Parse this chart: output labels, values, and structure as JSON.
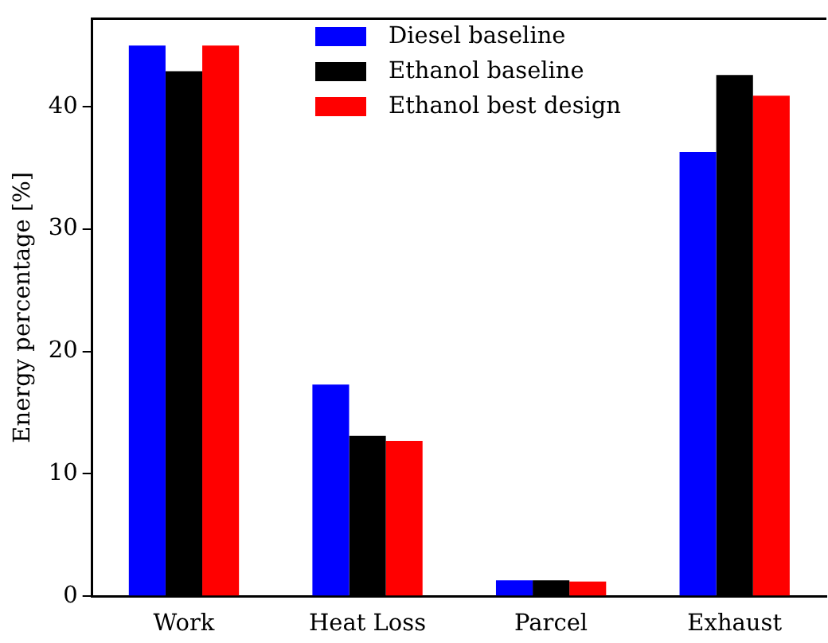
{
  "chart_data": {
    "type": "bar",
    "ylabel": "Energy percentage [%]",
    "categories": [
      "Work",
      "Heat Loss",
      "Parcel",
      "Exhaust"
    ],
    "series": [
      {
        "name": "Diesel baseline",
        "color": "#0000ff",
        "values": [
          45.0,
          17.3,
          1.3,
          36.3
        ]
      },
      {
        "name": "Ethanol baseline",
        "color": "#000000",
        "values": [
          42.9,
          13.1,
          1.3,
          42.6
        ]
      },
      {
        "name": "Ethanol best design",
        "color": "#ff0000",
        "values": [
          45.0,
          12.7,
          1.2,
          40.9
        ]
      }
    ],
    "ylim": [
      0,
      47.2
    ],
    "yticks": [
      0,
      10,
      20,
      30,
      40
    ],
    "grid": false,
    "legend": "top"
  }
}
